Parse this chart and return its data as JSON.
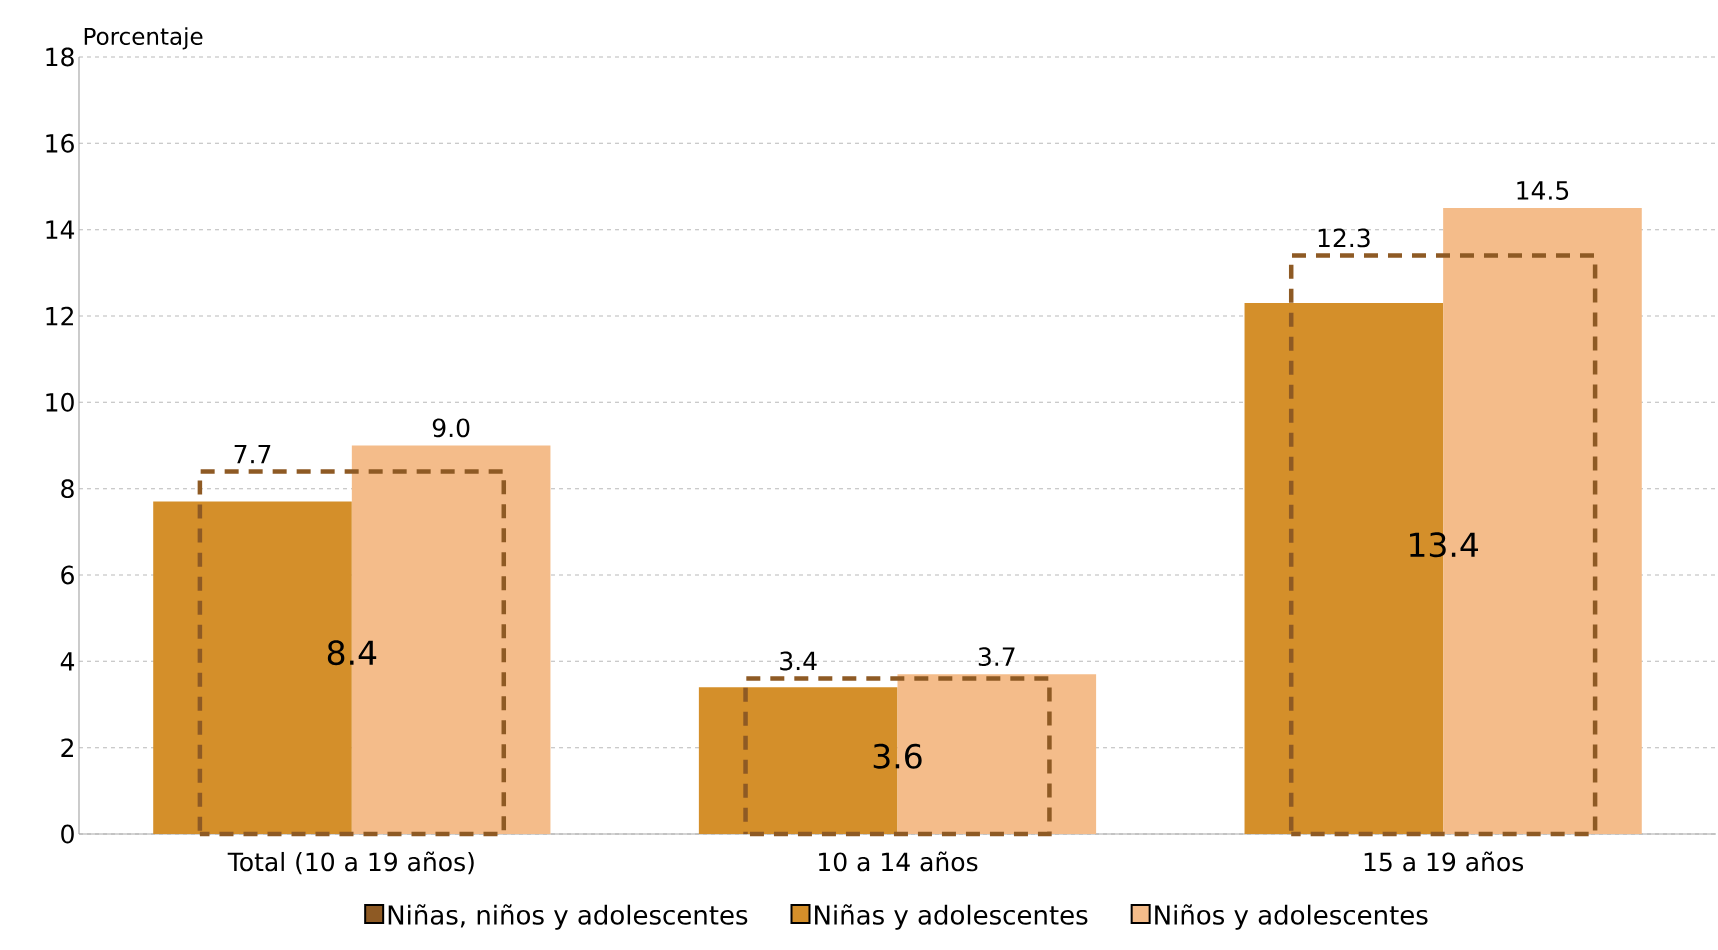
{
  "chart_data": {
    "type": "bar",
    "ylabel": "Porcentaje",
    "categories": [
      "Total (10 a 19 años)",
      "10 a 14 años",
      "15 a 19 años"
    ],
    "series": [
      {
        "name": "Niñas, niños y adolescentes",
        "color": "#8e5a24",
        "line_style": "dashed",
        "values": [
          8.4,
          3.6,
          13.4
        ],
        "value_labels": [
          "8.4",
          "3.6",
          "13.4"
        ]
      },
      {
        "name": "Niñas y adolescentes",
        "color": "#d48f2a",
        "values": [
          7.7,
          3.4,
          12.3
        ],
        "value_labels": [
          "7.7",
          "3.4",
          "12.3"
        ]
      },
      {
        "name": "Niños  y adolescentes",
        "color": "#f4bc8a",
        "values": [
          9.0,
          3.7,
          14.5
        ],
        "value_labels": [
          "9.0",
          "3.7",
          "14.5"
        ]
      }
    ],
    "ylim": [
      0,
      18
    ],
    "yticks": [
      0,
      2,
      4,
      6,
      8,
      10,
      12,
      14,
      16,
      18
    ],
    "grid": "y",
    "legend": "bottom"
  }
}
